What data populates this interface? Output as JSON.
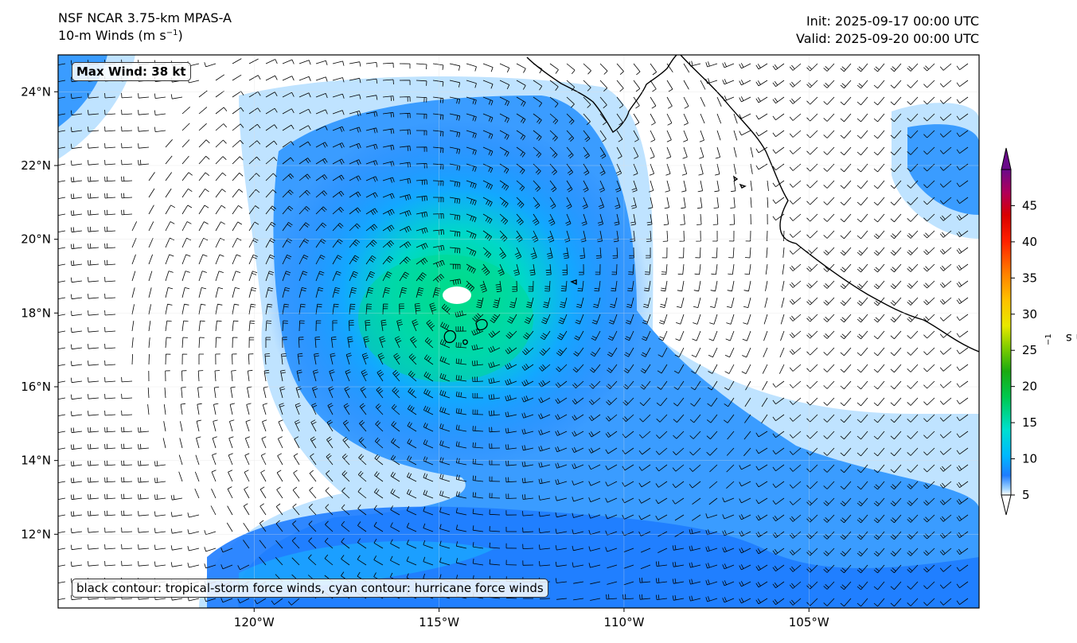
{
  "header": {
    "model": "NSF NCAR 3.75-km MPAS-A",
    "field_prefix": "10-m Winds (m s",
    "field_sup": "−1",
    "field_suffix": ")",
    "init": "Init: 2025-09-17 00:00 UTC",
    "valid": "Valid: 2025-09-20 00:00 UTC"
  },
  "map": {
    "lon_ticks": [
      "120°W",
      "115°W",
      "110°W",
      "105°W"
    ],
    "lat_ticks": [
      "24°N",
      "22°N",
      "20°N",
      "18°N",
      "16°N",
      "14°N",
      "12°N"
    ],
    "lon_range": [
      -125.3,
      -100.4
    ],
    "lat_range": [
      10.0,
      25.0
    ],
    "storm_center": {
      "lon": -114.5,
      "lat": 18.4
    },
    "max_wind_label": "Max Wind: 38 kt",
    "contour_note": "black contour: tropical-storm force winds, cyan contour: hurricane force winds",
    "land_color": "#ffffff",
    "coastline_color": "#000000"
  },
  "colorbar": {
    "ticks": [
      "5",
      "10",
      "15",
      "20",
      "25",
      "30",
      "35",
      "40",
      "45"
    ],
    "range": [
      5,
      50
    ],
    "unit_prefix": "[m s",
    "unit_sup": "−1",
    "unit_suffix": "]",
    "colors": [
      "#e0f3ff",
      "#9fd3ff",
      "#3aa0ff",
      "#1e7cff",
      "#00d7f0",
      "#00e5b0",
      "#00d060",
      "#1aaa10",
      "#7ccc00",
      "#e0e000",
      "#ffc000",
      "#ff8000",
      "#ff3000",
      "#d80000",
      "#b0005a",
      "#6a0a8a"
    ]
  }
}
